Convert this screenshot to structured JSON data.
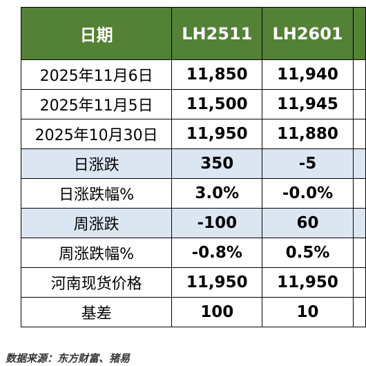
{
  "header": {
    "date": "日期",
    "col1": "LH2511",
    "col2": "LH2601"
  },
  "rows": [
    {
      "label": "2025年11月6日",
      "v1": "11,850",
      "v2": "11,940"
    },
    {
      "label": "2025年11月5日",
      "v1": "11,500",
      "v2": "11,945"
    },
    {
      "label": "2025年10月30日",
      "v1": "11,950",
      "v2": "11,880"
    },
    {
      "label": "日涨跌",
      "v1": "350",
      "v2": "-5"
    },
    {
      "label": "日涨跌幅%",
      "v1": "3.0%",
      "v2": "-0.0%"
    },
    {
      "label": "周涨跌",
      "v1": "-100",
      "v2": "60"
    },
    {
      "label": "周涨跌幅%",
      "v1": "-0.8%",
      "v2": "0.5%"
    },
    {
      "label": "河南现货价格",
      "v1": "11,950",
      "v2": "11,950"
    },
    {
      "label": "基差",
      "v1": "100",
      "v2": "10"
    }
  ],
  "colors": {
    "header_bg": "#538135",
    "positive": "#ff0000",
    "negative": "#00b050",
    "shade": "#dce6f2"
  },
  "source": "数据来源：东方财富、猪易"
}
